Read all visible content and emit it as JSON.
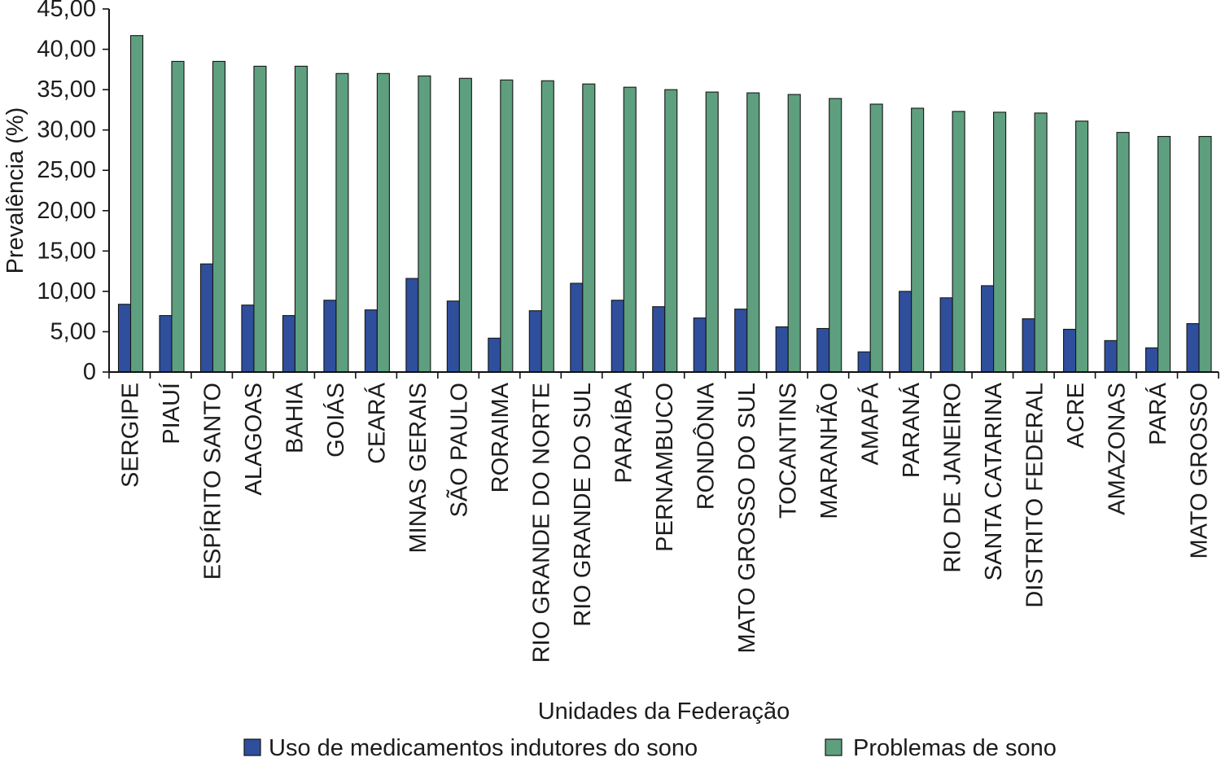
{
  "chart_data": {
    "type": "bar",
    "categories": [
      "SERGIPE",
      "PIAUÍ",
      "ESPÍRITO SANTO",
      "ALAGOAS",
      "BAHIA",
      "GOIÁS",
      "CEARÁ",
      "MINAS GERAIS",
      "SÃO PAULO",
      "RORAIMA",
      "RIO GRANDE DO NORTE",
      "RIO GRANDE DO SUL",
      "PARAÍBA",
      "PERNAMBUCO",
      "RONDÔNIA",
      "MATO GROSSO DO SUL",
      "TOCANTINS",
      "MARANHÃO",
      "AMAPÁ",
      "PARANÁ",
      "RIO DE JANEIRO",
      "SANTA CATARINA",
      "DISTRITO FEDERAL",
      "ACRE",
      "AMAZONAS",
      "PARÁ",
      "MATO GROSSO"
    ],
    "series": [
      {
        "name": "Uso de medicamentos indutores do sono",
        "color": "#2f4f9c",
        "values": [
          8.4,
          7.0,
          13.4,
          8.3,
          7.0,
          8.9,
          7.7,
          11.6,
          8.8,
          4.2,
          7.6,
          11.0,
          8.9,
          8.1,
          6.7,
          7.8,
          5.6,
          5.4,
          2.5,
          10.0,
          9.2,
          10.7,
          6.6,
          5.3,
          3.9,
          3.0,
          6.0
        ]
      },
      {
        "name": "Problemas de sono",
        "color": "#5e9f7f",
        "values": [
          41.7,
          38.5,
          38.5,
          37.9,
          37.9,
          37.0,
          37.0,
          36.7,
          36.4,
          36.2,
          36.1,
          35.7,
          35.3,
          35.0,
          34.7,
          34.6,
          34.4,
          33.9,
          33.2,
          32.7,
          32.3,
          32.2,
          32.1,
          31.1,
          29.7,
          29.2,
          29.2
        ]
      }
    ],
    "xlabel": "Unidades da Federação",
    "ylabel": "Prevalência (%)",
    "ylim": [
      0,
      45
    ],
    "yticks": [
      {
        "value": 0,
        "label": "0"
      },
      {
        "value": 5,
        "label": "5,00"
      },
      {
        "value": 10,
        "label": "10,00"
      },
      {
        "value": 15,
        "label": "15,00"
      },
      {
        "value": 20,
        "label": "20,00"
      },
      {
        "value": 25,
        "label": "25,00"
      },
      {
        "value": 30,
        "label": "30,00"
      },
      {
        "value": 35,
        "label": "35,00"
      },
      {
        "value": 40,
        "label": "40,00"
      },
      {
        "value": 45,
        "label": "45,00"
      }
    ],
    "grid": false,
    "legend": "bottom"
  }
}
